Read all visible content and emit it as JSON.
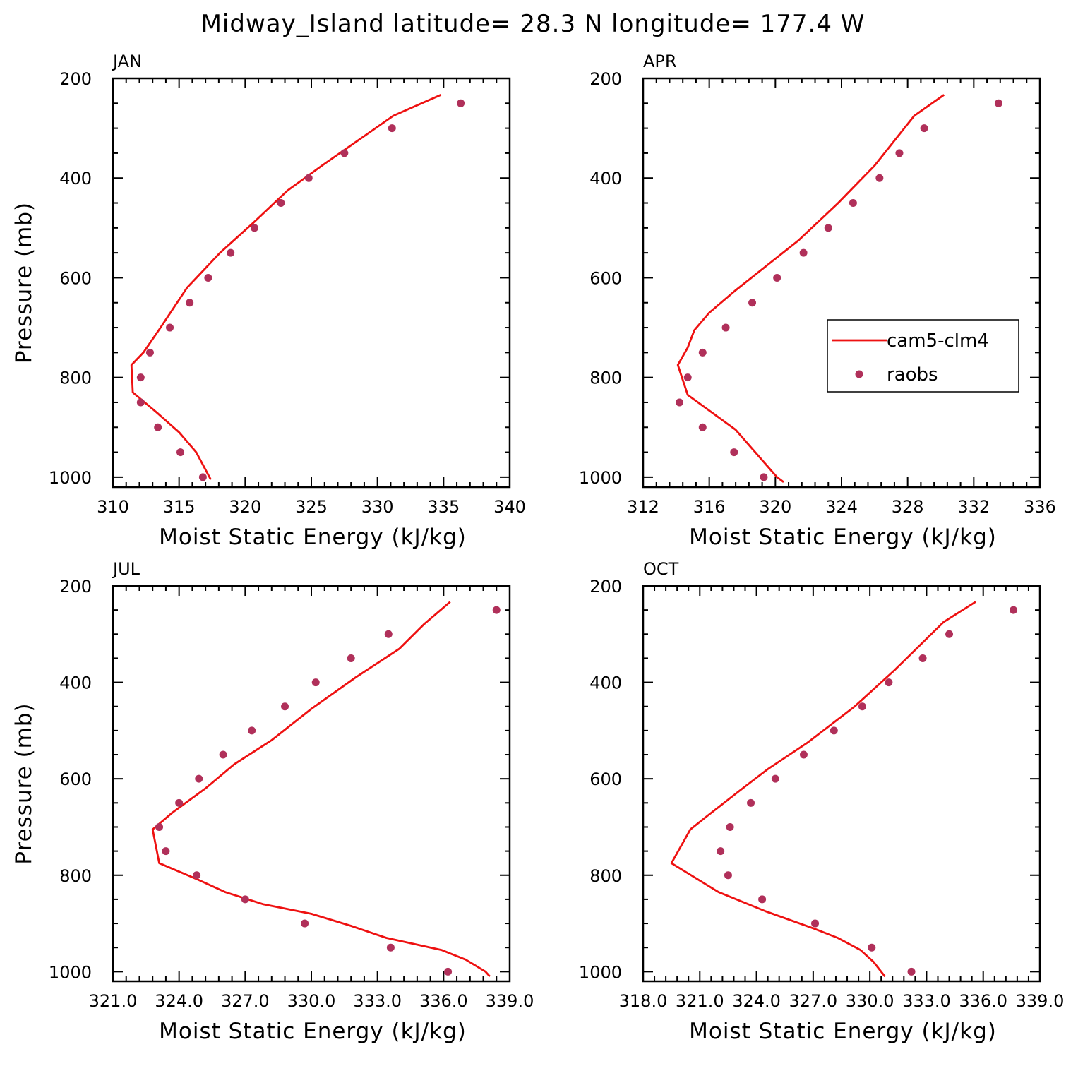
{
  "title": "Midway_Island  latitude= 28.3 N longitude= 177.4 W",
  "colors": {
    "model": "#ee1111",
    "obs": "#b0305a",
    "frame": "#000000"
  },
  "legend": {
    "model_label": "cam5-clm4",
    "obs_label": "raobs",
    "placement": "right-middle of APR panel"
  },
  "chart_data": [
    {
      "type": "line",
      "panel": "JAN",
      "xlabel": "Moist Static Energy (kJ/kg)",
      "ylabel": "Pressure (mb)",
      "xlim": [
        310,
        340
      ],
      "ylim": [
        1020,
        200
      ],
      "xticks": [
        310,
        315,
        320,
        325,
        330,
        335,
        340
      ],
      "xtick_labels": [
        "310",
        "315",
        "320",
        "325",
        "330",
        "335",
        "340"
      ],
      "yticks": [
        200,
        400,
        600,
        800,
        1000
      ],
      "series": [
        {
          "name": "cam5-clm4",
          "kind": "line",
          "x": [
            334.8,
            331.2,
            328.5,
            325.8,
            323.2,
            320.6,
            318.1,
            315.6,
            313.6,
            312.3,
            311.4,
            311.5,
            313.3,
            315.0,
            316.3,
            317.1,
            317.4
          ],
          "y": [
            233,
            275,
            325,
            375,
            425,
            490,
            550,
            620,
            700,
            750,
            775,
            830,
            870,
            910,
            950,
            990,
            1005
          ]
        },
        {
          "name": "raobs",
          "kind": "scatter",
          "x": [
            336.3,
            331.1,
            327.5,
            324.8,
            322.7,
            320.7,
            318.9,
            317.2,
            315.8,
            314.3,
            312.8,
            312.1,
            312.1,
            313.4,
            315.1,
            316.8
          ],
          "y": [
            250,
            300,
            350,
            400,
            450,
            500,
            550,
            600,
            650,
            700,
            750,
            800,
            850,
            900,
            950,
            1000
          ]
        }
      ]
    },
    {
      "type": "line",
      "panel": "APR",
      "xlabel": "Moist Static Energy (kJ/kg)",
      "ylabel": "",
      "xlim": [
        312,
        336
      ],
      "ylim": [
        1020,
        200
      ],
      "xticks": [
        312,
        316,
        320,
        324,
        328,
        332,
        336
      ],
      "xtick_labels": [
        "312",
        "316",
        "320",
        "324",
        "328",
        "332",
        "336"
      ],
      "yticks": [
        200,
        400,
        600,
        800,
        1000
      ],
      "series": [
        {
          "name": "cam5-clm4",
          "kind": "line",
          "x": [
            330.2,
            328.4,
            326.0,
            323.8,
            321.4,
            319.5,
            317.6,
            316.0,
            315.1,
            314.7,
            314.1,
            314.7,
            317.6,
            320.1,
            320.5
          ],
          "y": [
            233,
            275,
            375,
            450,
            525,
            575,
            625,
            670,
            705,
            740,
            775,
            835,
            905,
            1000,
            1010
          ]
        },
        {
          "name": "raobs",
          "kind": "scatter",
          "x": [
            333.5,
            329.0,
            327.5,
            326.3,
            324.7,
            323.2,
            321.7,
            320.1,
            318.6,
            317.0,
            315.6,
            314.7,
            314.2,
            315.6,
            317.5,
            319.3
          ],
          "y": [
            250,
            300,
            350,
            400,
            450,
            500,
            550,
            600,
            650,
            700,
            750,
            800,
            850,
            900,
            950,
            1000
          ]
        }
      ]
    },
    {
      "type": "line",
      "panel": "JUL",
      "xlabel": "Moist Static Energy (kJ/kg)",
      "ylabel": "Pressure (mb)",
      "xlim": [
        321.0,
        339.0
      ],
      "ylim": [
        1020,
        200
      ],
      "xticks": [
        321,
        324,
        327,
        330,
        333,
        336,
        339
      ],
      "xtick_labels": [
        "321.0",
        "324.0",
        "327.0",
        "330.0",
        "333.0",
        "336.0",
        "339.0"
      ],
      "yticks": [
        200,
        400,
        600,
        800,
        1000
      ],
      "series": [
        {
          "name": "cam5-clm4",
          "kind": "line",
          "x": [
            336.3,
            335.1,
            334.0,
            332.0,
            330.0,
            328.2,
            326.5,
            325.2,
            323.7,
            322.8,
            323.1,
            324.9,
            326.1,
            327.8,
            330.0,
            331.8,
            333.4,
            335.9,
            337.0,
            337.9,
            338.1
          ],
          "y": [
            233,
            280,
            330,
            390,
            455,
            520,
            570,
            620,
            670,
            705,
            775,
            810,
            835,
            860,
            880,
            905,
            930,
            955,
            975,
            1000,
            1010
          ]
        },
        {
          "name": "raobs",
          "kind": "scatter",
          "x": [
            338.4,
            333.5,
            331.8,
            330.2,
            328.8,
            327.3,
            326.0,
            324.9,
            324.0,
            323.1,
            323.4,
            324.8,
            327.0,
            329.7,
            333.6,
            336.2
          ],
          "y": [
            250,
            300,
            350,
            400,
            450,
            500,
            550,
            600,
            650,
            700,
            750,
            800,
            850,
            900,
            950,
            1000
          ]
        }
      ]
    },
    {
      "type": "line",
      "panel": "OCT",
      "xlabel": "Moist Static Energy (kJ/kg)",
      "ylabel": "",
      "xlim": [
        318.0,
        339.0
      ],
      "ylim": [
        1020,
        200
      ],
      "xticks": [
        318,
        321,
        324,
        327,
        330,
        333,
        336,
        339
      ],
      "xtick_labels": [
        "318.0",
        "321.0",
        "324.0",
        "327.0",
        "330.0",
        "333.0",
        "336.0",
        "339.0"
      ],
      "yticks": [
        200,
        400,
        600,
        800,
        1000
      ],
      "series": [
        {
          "name": "cam5-clm4",
          "kind": "line",
          "x": [
            335.6,
            333.9,
            331.3,
            329.2,
            326.7,
            324.6,
            323.1,
            321.3,
            320.5,
            319.5,
            322.0,
            324.5,
            327.0,
            328.3,
            329.5,
            330.2,
            330.8
          ],
          "y": [
            233,
            275,
            375,
            450,
            525,
            580,
            625,
            680,
            705,
            775,
            835,
            875,
            910,
            930,
            955,
            980,
            1010
          ]
        },
        {
          "name": "raobs",
          "kind": "scatter",
          "x": [
            337.6,
            334.2,
            332.8,
            331.0,
            329.6,
            328.1,
            326.5,
            325.0,
            323.7,
            322.6,
            322.1,
            322.5,
            324.3,
            327.1,
            330.1,
            332.2
          ],
          "y": [
            250,
            300,
            350,
            400,
            450,
            500,
            550,
            600,
            650,
            700,
            750,
            800,
            850,
            900,
            950,
            1000
          ]
        }
      ]
    }
  ]
}
